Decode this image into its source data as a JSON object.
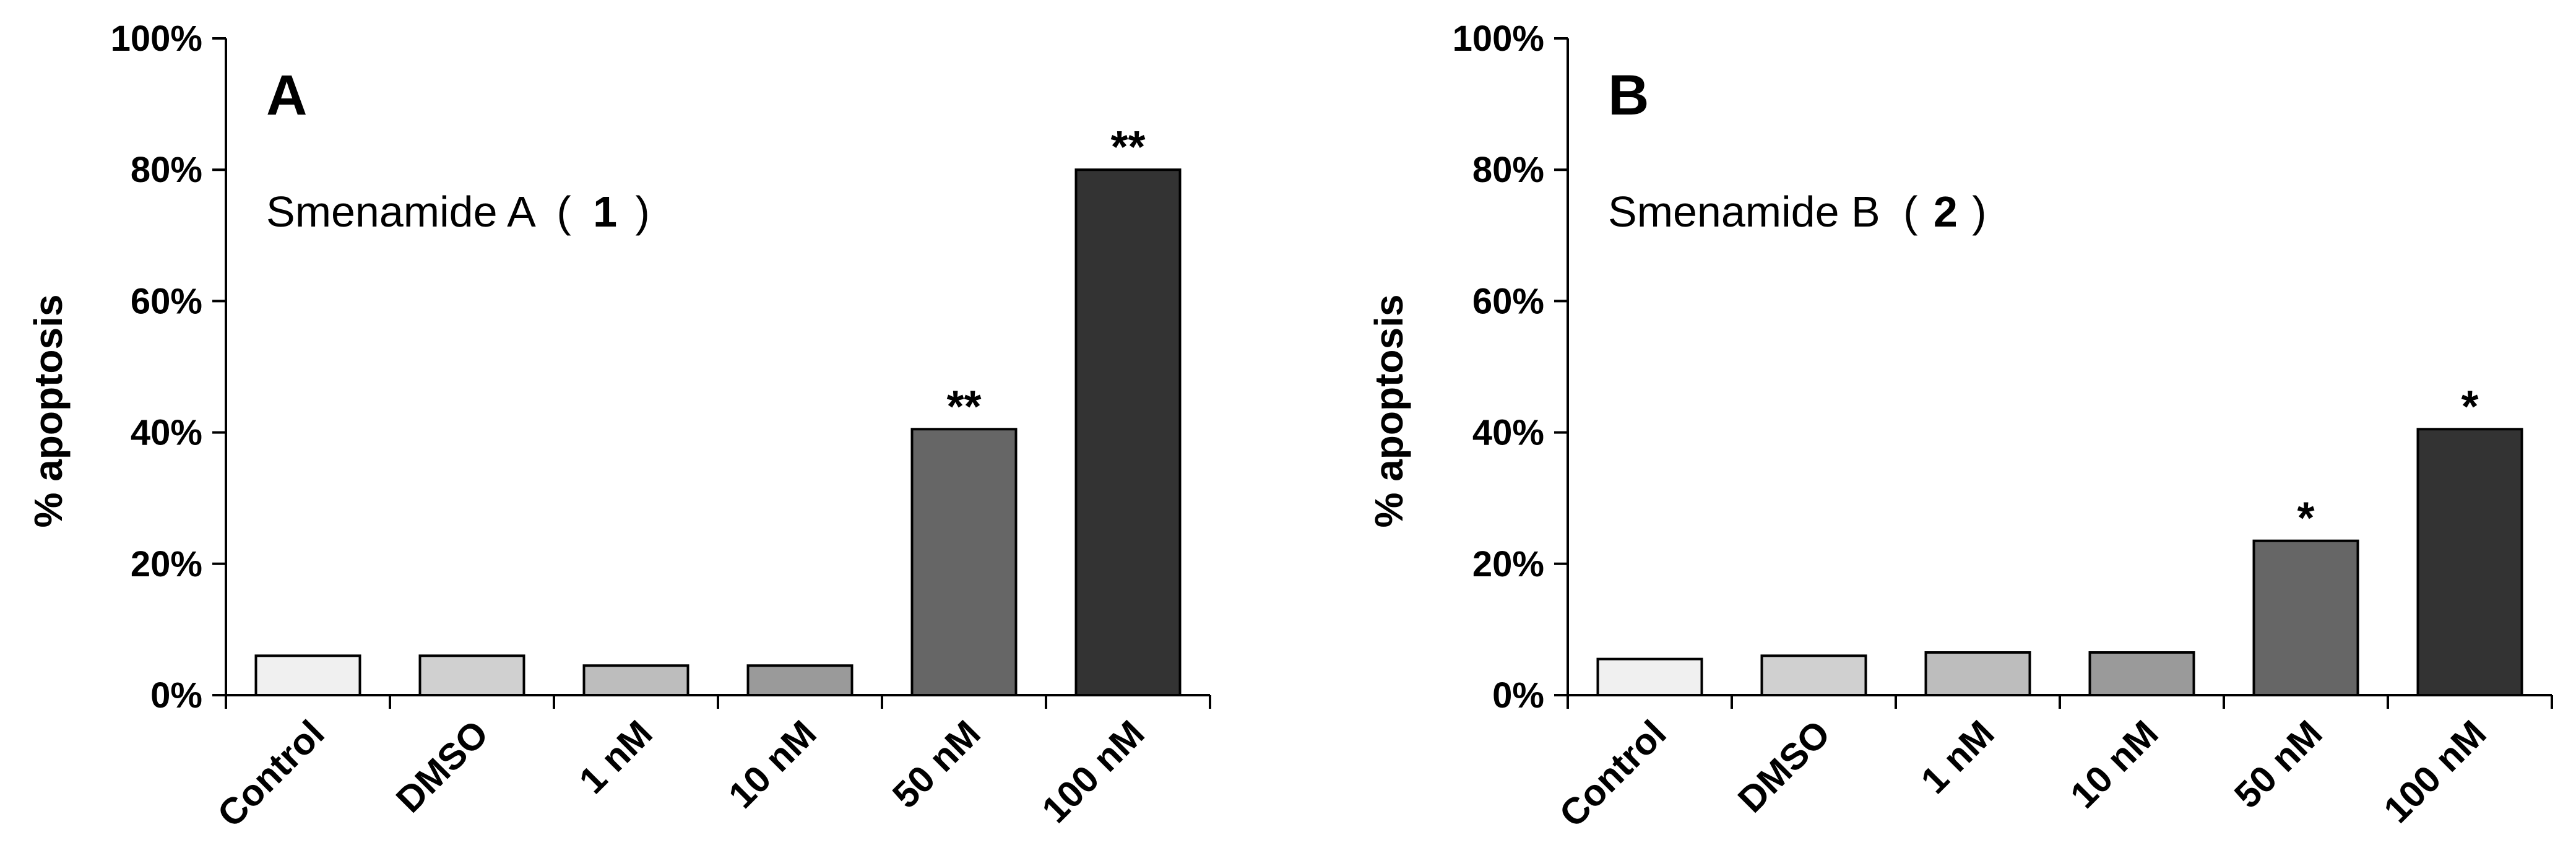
{
  "figure": {
    "panels": [
      {
        "letter": "A",
        "compound": {
          "name": "Smenamide A",
          "open": "(",
          "number": "1",
          "close": ")"
        }
      },
      {
        "letter": "B",
        "compound": {
          "name": "Smenamide B",
          "open": "(",
          "number": "2",
          "close": ")"
        }
      }
    ]
  },
  "chart_data": [
    {
      "type": "bar",
      "title": "",
      "xlabel": "",
      "ylabel": "% apoptosis",
      "ylim": [
        0,
        100
      ],
      "yticks": [
        "0%",
        "20%",
        "40%",
        "60%",
        "80%",
        "100%"
      ],
      "categories": [
        "Control",
        "DMSO",
        "1 nM",
        "10 nM",
        "50 nM",
        "100 nM"
      ],
      "values": [
        6,
        6,
        4.5,
        4.5,
        40.5,
        80
      ],
      "significance": [
        "",
        "",
        "",
        "",
        "**",
        "**"
      ],
      "bar_colors": [
        "#f0f0f0",
        "#d0d0d0",
        "#bdbdbd",
        "#9a9a9a",
        "#666666",
        "#333333"
      ],
      "grid": false,
      "legend": "none"
    },
    {
      "type": "bar",
      "title": "",
      "xlabel": "",
      "ylabel": "% apoptosis",
      "ylim": [
        0,
        100
      ],
      "yticks": [
        "0%",
        "20%",
        "40%",
        "60%",
        "80%",
        "100%"
      ],
      "categories": [
        "Control",
        "DMSO",
        "1 nM",
        "10 nM",
        "50 nM",
        "100 nM"
      ],
      "values": [
        5.5,
        6,
        6.5,
        6.5,
        23.5,
        40.5
      ],
      "significance": [
        "",
        "",
        "",
        "",
        "*",
        "*"
      ],
      "bar_colors": [
        "#f0f0f0",
        "#d0d0d0",
        "#bdbdbd",
        "#9a9a9a",
        "#666666",
        "#333333"
      ],
      "grid": false,
      "legend": "none"
    }
  ]
}
